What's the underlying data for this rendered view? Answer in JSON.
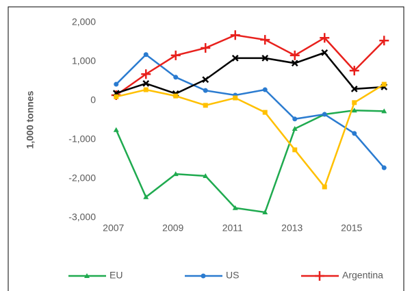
{
  "chart_data": {
    "type": "line",
    "y_label": "1,000 tonnes",
    "x": [
      2007,
      2008,
      2009,
      2010,
      2011,
      2012,
      2013,
      2014,
      2015,
      2016
    ],
    "xlim": [
      2006.5,
      2016.5
    ],
    "xticks": [
      2007,
      2009,
      2011,
      2013,
      2015
    ],
    "ylim": [
      -3000,
      2000
    ],
    "yticks": [
      {
        "value": -3000,
        "label": "-3,000"
      },
      {
        "value": -2000,
        "label": "-2,000"
      },
      {
        "value": -1000,
        "label": "-1,000"
      },
      0,
      {
        "value": 1000,
        "label": "1,000"
      },
      {
        "value": 2000,
        "label": "2,000"
      }
    ],
    "grid": false,
    "legend": "bottom",
    "series": [
      {
        "name": "EU",
        "color": "#1faa4f",
        "marker": "triangle",
        "values": [
          -750,
          -2470,
          -1880,
          -1930,
          -2750,
          -2860,
          -720,
          -350,
          -250,
          -270
        ]
      },
      {
        "name": "US",
        "color": "#2a7bd0",
        "marker": "circle",
        "values": [
          420,
          1180,
          600,
          260,
          140,
          280,
          -470,
          -350,
          -840,
          -1720
        ]
      },
      {
        "name": "Argentina",
        "color": "#e8201c",
        "marker": "plus",
        "values": [
          140,
          680,
          1160,
          1350,
          1680,
          1560,
          1160,
          1610,
          770,
          1540
        ]
      },
      {
        "color": "#000000",
        "marker": "cross",
        "values": [
          190,
          440,
          180,
          540,
          1090,
          1090,
          960,
          1230,
          300,
          350
        ]
      },
      {
        "color": "#ffc000",
        "marker": "square",
        "values": [
          100,
          280,
          120,
          -120,
          70,
          -300,
          -1260,
          -2210,
          -50,
          420
        ]
      }
    ]
  }
}
